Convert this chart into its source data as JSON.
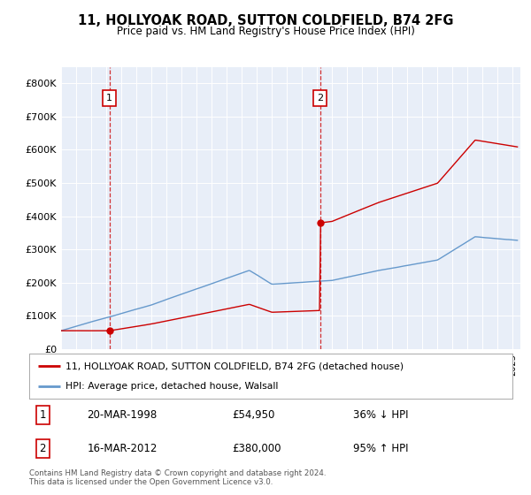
{
  "title": "11, HOLLYOAK ROAD, SUTTON COLDFIELD, B74 2FG",
  "subtitle": "Price paid vs. HM Land Registry's House Price Index (HPI)",
  "property_label": "11, HOLLYOAK ROAD, SUTTON COLDFIELD, B74 2FG (detached house)",
  "hpi_label": "HPI: Average price, detached house, Walsall",
  "sale1_date": "20-MAR-1998",
  "sale1_price": 54950,
  "sale1_year": 1998.22,
  "sale1_pct": "36% ↓ HPI",
  "sale2_date": "16-MAR-2012",
  "sale2_price": 380000,
  "sale2_year": 2012.21,
  "sale2_pct": "95% ↑ HPI",
  "footer": "Contains HM Land Registry data © Crown copyright and database right 2024.\nThis data is licensed under the Open Government Licence v3.0.",
  "property_color": "#cc0000",
  "hpi_color": "#6699cc",
  "plot_bg": "#e8eef8",
  "grid_color": "#ffffff",
  "ylim": [
    0,
    850000
  ],
  "xlim": [
    1995.0,
    2025.5
  ],
  "yticks": [
    0,
    100000,
    200000,
    300000,
    400000,
    500000,
    600000,
    700000,
    800000
  ],
  "ylabels": [
    "£0",
    "£100K",
    "£200K",
    "£300K",
    "£400K",
    "£500K",
    "£600K",
    "£700K",
    "£800K"
  ]
}
